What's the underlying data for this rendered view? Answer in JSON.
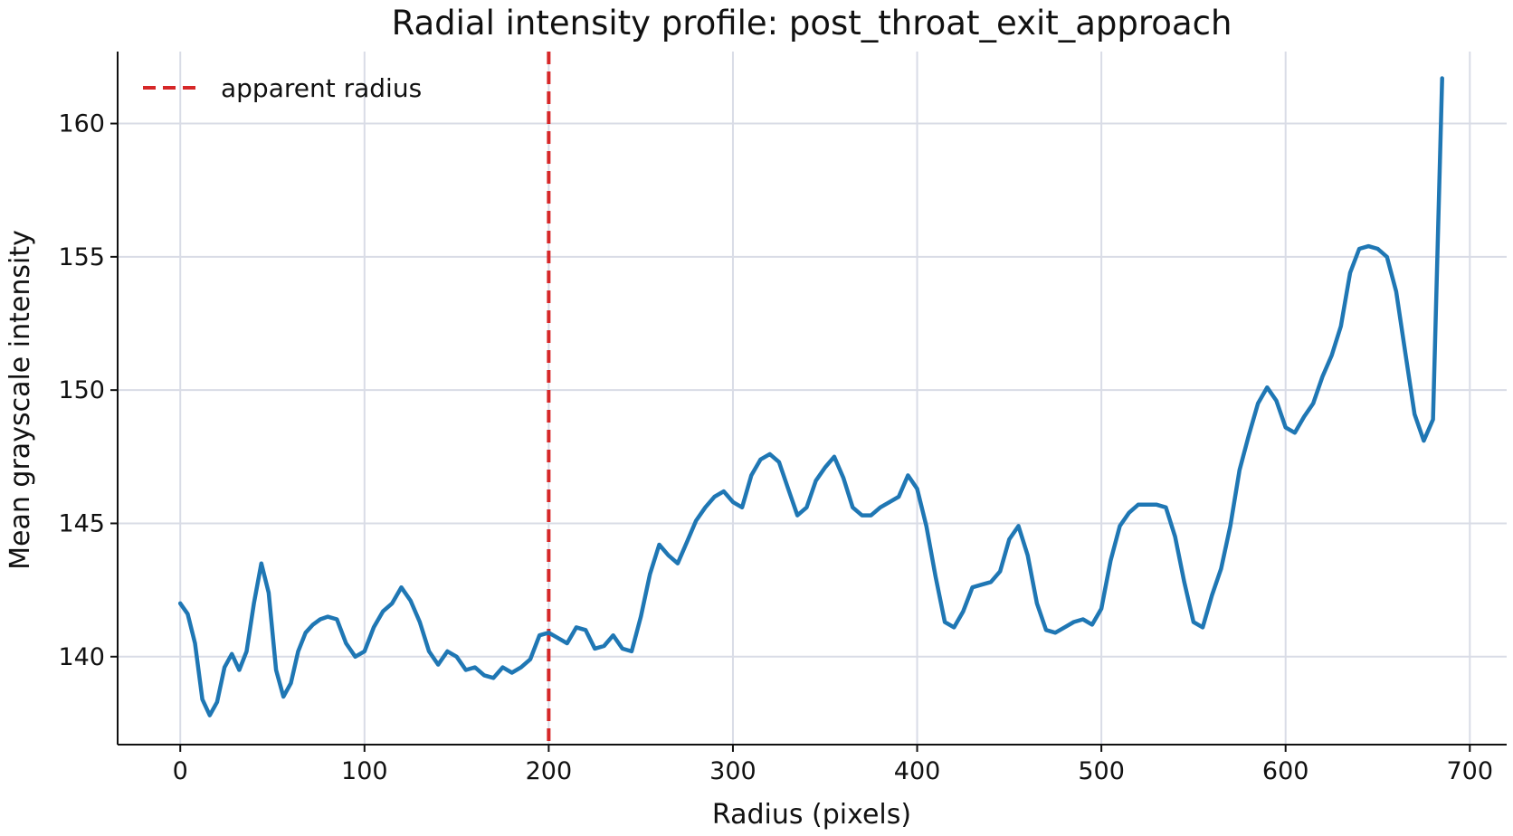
{
  "chart_data": {
    "type": "line",
    "title": "Radial intensity profile: post_throat_exit_approach",
    "xlabel": "Radius (pixels)",
    "ylabel": "Mean grayscale intensity",
    "xlim": [
      -34,
      720
    ],
    "ylim": [
      136.7,
      162.7
    ],
    "xticks": [
      0,
      100,
      200,
      300,
      400,
      500,
      600,
      700
    ],
    "yticks": [
      140,
      145,
      150,
      155,
      160
    ],
    "grid": true,
    "legend": {
      "placement": "top-left",
      "entries": [
        {
          "label": "apparent radius",
          "style": "dashed",
          "color": "#d62728"
        }
      ]
    },
    "series": [
      {
        "color": "#1f77b4",
        "x": [
          0,
          4,
          8,
          12,
          16,
          20,
          24,
          28,
          32,
          36,
          40,
          44,
          48,
          52,
          56,
          60,
          64,
          68,
          72,
          76,
          80,
          85,
          90,
          95,
          100,
          105,
          110,
          115,
          120,
          125,
          130,
          135,
          140,
          145,
          150,
          155,
          160,
          165,
          170,
          175,
          180,
          185,
          190,
          195,
          200,
          205,
          210,
          215,
          220,
          225,
          230,
          235,
          240,
          245,
          250,
          255,
          260,
          265,
          270,
          275,
          280,
          285,
          290,
          295,
          300,
          305,
          310,
          315,
          320,
          325,
          330,
          335,
          340,
          345,
          350,
          355,
          360,
          365,
          370,
          375,
          380,
          385,
          390,
          395,
          400,
          405,
          410,
          415,
          420,
          425,
          430,
          435,
          440,
          445,
          450,
          455,
          460,
          465,
          470,
          475,
          480,
          485,
          490,
          495,
          500,
          505,
          510,
          515,
          520,
          525,
          530,
          535,
          540,
          545,
          550,
          555,
          560,
          565,
          570,
          575,
          580,
          585,
          590,
          595,
          600,
          605,
          610,
          615,
          620,
          625,
          630,
          635,
          640,
          645,
          650,
          655,
          660,
          665,
          670,
          675,
          680,
          685
        ],
        "y": [
          142.0,
          141.6,
          140.5,
          138.4,
          137.8,
          138.3,
          139.6,
          140.1,
          139.5,
          140.2,
          142.0,
          143.5,
          142.4,
          139.5,
          138.5,
          139.0,
          140.2,
          140.9,
          141.2,
          141.4,
          141.5,
          141.4,
          140.5,
          140.0,
          140.2,
          141.1,
          141.7,
          142.0,
          142.6,
          142.1,
          141.3,
          140.2,
          139.7,
          140.2,
          140.0,
          139.5,
          139.6,
          139.3,
          139.2,
          139.6,
          139.4,
          139.6,
          139.9,
          140.8,
          140.9,
          140.7,
          140.5,
          141.1,
          141.0,
          140.3,
          140.4,
          140.8,
          140.3,
          140.2,
          141.5,
          143.1,
          144.2,
          143.8,
          143.5,
          144.3,
          145.1,
          145.6,
          146.0,
          146.2,
          145.8,
          145.6,
          146.8,
          147.4,
          147.6,
          147.3,
          146.3,
          145.3,
          145.6,
          146.6,
          147.1,
          147.5,
          146.7,
          145.6,
          145.3,
          145.3,
          145.6,
          145.8,
          146.0,
          146.8,
          146.3,
          144.9,
          143.0,
          141.3,
          141.1,
          141.7,
          142.6,
          142.7,
          142.8,
          143.2,
          144.4,
          144.9,
          143.8,
          142.0,
          141.0,
          140.9,
          141.1,
          141.3,
          141.4,
          141.2,
          141.8,
          143.6,
          144.9,
          145.4,
          145.7,
          145.7,
          145.7,
          145.6,
          144.5,
          142.8,
          141.3,
          141.1,
          142.3,
          143.3,
          144.9,
          147.0,
          148.3,
          149.5,
          150.1,
          149.6,
          148.6,
          148.4,
          149.0,
          149.5,
          150.5,
          151.3,
          152.4,
          154.4,
          155.3,
          155.4,
          155.3,
          155.0,
          153.7,
          151.4,
          149.1,
          148.1,
          148.9,
          161.7
        ]
      }
    ],
    "annotations": [
      {
        "type": "vline",
        "x": 200,
        "label": "apparent radius",
        "color": "#d62728",
        "style": "dashed"
      }
    ]
  }
}
